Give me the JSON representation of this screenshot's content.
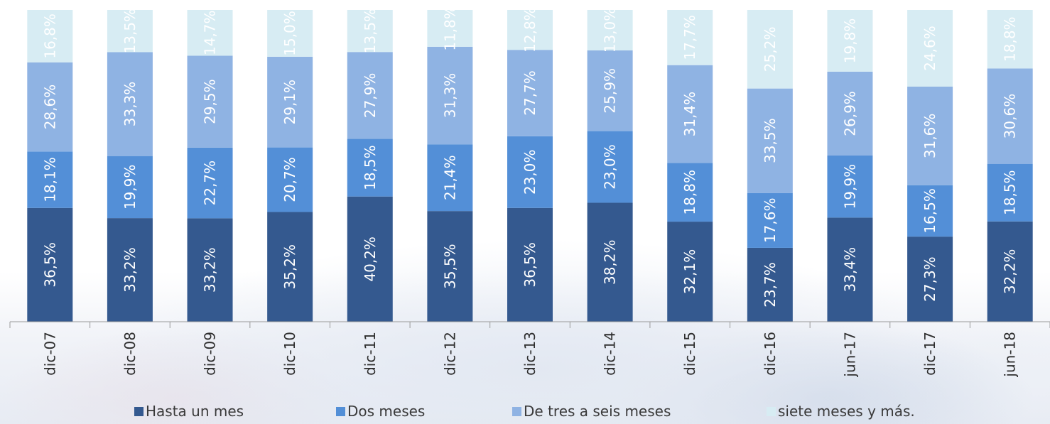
{
  "chart_data": {
    "type": "bar",
    "stacked": true,
    "percent_stacked": true,
    "orientation": "vertical",
    "categories": [
      "dic-07",
      "dic-08",
      "dic-09",
      "dic-10",
      "dic-11",
      "dic-12",
      "dic-13",
      "dic-14",
      "dic-15",
      "dic-16",
      "jun-17",
      "dic-17",
      "jun-18"
    ],
    "series": [
      {
        "name": "Hasta un mes",
        "color": "#34598f",
        "values": [
          36.5,
          33.2,
          33.2,
          35.2,
          40.2,
          35.5,
          36.5,
          38.2,
          32.1,
          23.7,
          33.4,
          27.3,
          32.2
        ],
        "labels": [
          "36,5%",
          "33,2%",
          "33,2%",
          "35,2%",
          "40,2%",
          "35,5%",
          "36,5%",
          "38,2%",
          "32,1%",
          "23,7%",
          "33,4%",
          "27,3%",
          "32,2%"
        ]
      },
      {
        "name": "Dos meses",
        "color": "#538fd7",
        "values": [
          18.1,
          19.9,
          22.7,
          20.7,
          18.5,
          21.4,
          23.0,
          23.0,
          18.8,
          17.6,
          19.9,
          16.5,
          18.5
        ],
        "labels": [
          "18,1%",
          "19,9%",
          "22,7%",
          "20,7%",
          "18,5%",
          "21,4%",
          "23,0%",
          "23,0%",
          "18,8%",
          "17,6%",
          "19,9%",
          "16,5%",
          "18,5%"
        ]
      },
      {
        "name": "De tres a seis meses",
        "color": "#8fb3e3",
        "values": [
          28.6,
          33.3,
          29.5,
          29.1,
          27.9,
          31.3,
          27.7,
          25.9,
          31.4,
          33.5,
          26.9,
          31.6,
          30.6
        ],
        "labels": [
          "28,6%",
          "33,3%",
          "29,5%",
          "29,1%",
          "27,9%",
          "31,3%",
          "27,7%",
          "25,9%",
          "31,4%",
          "33,5%",
          "26,9%",
          "31,6%",
          "30,6%"
        ]
      },
      {
        "name": "siete meses y más.",
        "color": "#d7ecf3",
        "values": [
          16.8,
          13.5,
          14.7,
          15.0,
          13.5,
          11.8,
          12.8,
          13.0,
          17.7,
          25.2,
          19.8,
          24.6,
          18.8
        ],
        "labels": [
          "16,8%",
          "13,5%",
          "14,7%",
          "15,0%",
          "13,5%",
          "11,8%",
          "12,8%",
          "13,0%",
          "17,7%",
          "25,2%",
          "19,8%",
          "24,6%",
          "18,8%"
        ]
      }
    ],
    "title": "",
    "xlabel": "",
    "ylabel": "",
    "y_axis_visible": false,
    "ylim": [
      0,
      100
    ],
    "grid": false,
    "legend_position": "bottom",
    "data_label_color": "#ffffff",
    "data_label_rotation": "vertical",
    "tick_label_rotation": "vertical"
  }
}
